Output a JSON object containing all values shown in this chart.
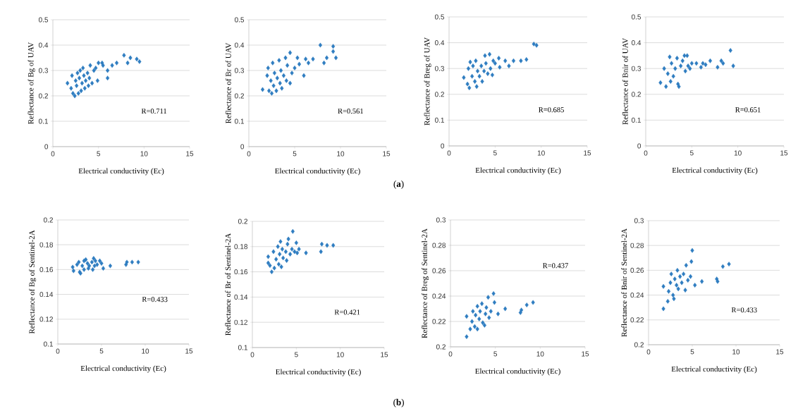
{
  "chart_data": [
    {
      "type": "scatter",
      "xlabel": "Electrical conductivity (Ec)",
      "ylabel": "Reflectance of Bg of UAV",
      "color": "#2f7dc1",
      "marker": "diamond",
      "grid": "y",
      "xlim": [
        0,
        15
      ],
      "xticks": [
        0,
        5,
        10,
        15
      ],
      "ylim": [
        0,
        0.5
      ],
      "yticks": [
        0,
        0.1,
        0.2,
        0.3,
        0.4,
        0.5
      ],
      "annotations": [
        "R=0.711"
      ],
      "x": [
        1.6,
        2.0,
        2.1,
        2.2,
        2.4,
        2.5,
        2.6,
        2.7,
        2.8,
        2.9,
        3.0,
        3.1,
        3.2,
        3.3,
        3.4,
        3.5,
        3.6,
        3.8,
        3.9,
        4.0,
        4.1,
        4.3,
        4.5,
        4.7,
        4.9,
        5.0,
        5.4,
        5.5,
        6.0,
        6.0,
        6.5,
        7.0,
        7.8,
        8.2,
        8.5,
        9.2,
        9.5
      ],
      "values": [
        0.25,
        0.23,
        0.28,
        0.21,
        0.2,
        0.26,
        0.24,
        0.29,
        0.21,
        0.27,
        0.3,
        0.22,
        0.25,
        0.31,
        0.28,
        0.23,
        0.26,
        0.29,
        0.24,
        0.27,
        0.32,
        0.25,
        0.3,
        0.31,
        0.26,
        0.33,
        0.33,
        0.32,
        0.3,
        0.27,
        0.32,
        0.33,
        0.36,
        0.33,
        0.35,
        0.345,
        0.335
      ]
    },
    {
      "type": "scatter",
      "xlabel": "Electrical conductivity (Ec)",
      "ylabel": "Reflectance of Br of UAV",
      "color": "#2f7dc1",
      "marker": "diamond",
      "grid": "y",
      "xlim": [
        0,
        15
      ],
      "xticks": [
        0,
        5,
        10,
        15
      ],
      "ylim": [
        0,
        0.5
      ],
      "yticks": [
        0,
        0.1,
        0.2,
        0.3,
        0.4,
        0.5
      ],
      "annotations": [
        "R=0.561",
        "(**a**)"
      ],
      "x": [
        1.5,
        2.0,
        2.1,
        2.2,
        2.4,
        2.5,
        2.6,
        2.7,
        2.8,
        3.0,
        3.1,
        3.3,
        3.4,
        3.5,
        3.6,
        3.8,
        4.0,
        4.1,
        4.2,
        4.5,
        4.5,
        4.7,
        5.0,
        5.3,
        5.5,
        6.0,
        6.2,
        6.5,
        7.0,
        7.8,
        8.2,
        8.5,
        9.2,
        9.2,
        9.5
      ],
      "values": [
        0.225,
        0.28,
        0.31,
        0.22,
        0.26,
        0.21,
        0.33,
        0.24,
        0.29,
        0.22,
        0.27,
        0.34,
        0.25,
        0.3,
        0.23,
        0.28,
        0.35,
        0.26,
        0.32,
        0.37,
        0.25,
        0.29,
        0.31,
        0.35,
        0.325,
        0.28,
        0.345,
        0.33,
        0.345,
        0.4,
        0.33,
        0.35,
        0.395,
        0.375,
        0.35
      ]
    },
    {
      "type": "scatter",
      "xlabel": "Electrical conductivity (Ec)",
      "ylabel": "Reflectance of Breg of UAV",
      "color": "#2f7dc1",
      "marker": "diamond",
      "grid": "y",
      "xlim": [
        0,
        15
      ],
      "xticks": [
        0,
        5,
        10,
        15
      ],
      "ylim": [
        0,
        0.5
      ],
      "yticks": [
        0,
        0.1,
        0.2,
        0.3,
        0.4,
        0.5
      ],
      "annotations": [
        "R=0.685"
      ],
      "x": [
        1.6,
        2.0,
        2.1,
        2.2,
        2.3,
        2.5,
        2.6,
        2.8,
        2.9,
        3.0,
        3.1,
        3.3,
        3.5,
        3.6,
        3.8,
        3.9,
        4.0,
        4.2,
        4.4,
        4.5,
        4.7,
        4.8,
        5.0,
        5.4,
        5.5,
        6.1,
        6.5,
        7.0,
        7.8,
        8.4,
        9.2,
        9.5
      ],
      "values": [
        0.265,
        0.24,
        0.3,
        0.225,
        0.325,
        0.27,
        0.31,
        0.25,
        0.33,
        0.23,
        0.29,
        0.27,
        0.31,
        0.25,
        0.29,
        0.35,
        0.32,
        0.28,
        0.355,
        0.3,
        0.275,
        0.33,
        0.32,
        0.34,
        0.305,
        0.33,
        0.31,
        0.33,
        0.33,
        0.335,
        0.395,
        0.39
      ]
    },
    {
      "type": "scatter",
      "xlabel": "Electrical conductivity (Ec)",
      "ylabel": "Reflectance of Bnir of UAV",
      "color": "#2f7dc1",
      "marker": "diamond",
      "grid": "y",
      "xlim": [
        0,
        15
      ],
      "xticks": [
        0,
        5,
        10,
        15
      ],
      "ylim": [
        0,
        0.5
      ],
      "yticks": [
        0,
        0.1,
        0.2,
        0.3,
        0.4,
        0.5
      ],
      "annotations": [
        "R=0.651"
      ],
      "x": [
        1.6,
        2.0,
        2.2,
        2.4,
        2.6,
        2.7,
        2.8,
        3.0,
        3.2,
        3.4,
        3.5,
        3.6,
        3.8,
        4.0,
        4.2,
        4.3,
        4.5,
        4.6,
        4.8,
        5.0,
        5.5,
        6.0,
        6.2,
        6.5,
        7.0,
        7.8,
        8.2,
        8.4,
        9.2,
        9.5
      ],
      "values": [
        0.245,
        0.3,
        0.23,
        0.28,
        0.345,
        0.25,
        0.32,
        0.27,
        0.3,
        0.34,
        0.24,
        0.23,
        0.31,
        0.33,
        0.35,
        0.29,
        0.35,
        0.31,
        0.3,
        0.32,
        0.32,
        0.305,
        0.32,
        0.315,
        0.33,
        0.305,
        0.33,
        0.32,
        0.37,
        0.31
      ]
    },
    {
      "type": "scatter",
      "xlabel": "Electrical conductivity (Ec)",
      "ylabel": "Reflectance of Bg of Sentinel-2A",
      "color": "#2f7dc1",
      "marker": "diamond",
      "grid": "y",
      "xlim": [
        0,
        15
      ],
      "xticks": [
        0,
        5,
        10,
        15
      ],
      "ylim": [
        0.1,
        0.2
      ],
      "yticks": [
        0.1,
        0.12,
        0.14,
        0.16,
        0.18,
        0.2
      ],
      "annotations": [
        "R=0.433"
      ],
      "x": [
        1.7,
        1.8,
        2.2,
        2.4,
        2.5,
        2.6,
        2.8,
        3.0,
        3.0,
        3.2,
        3.4,
        3.5,
        3.6,
        3.9,
        4.0,
        4.1,
        4.2,
        4.3,
        4.5,
        4.8,
        5.0,
        5.2,
        6.0,
        7.8,
        7.9,
        8.5,
        9.2
      ],
      "values": [
        0.162,
        0.159,
        0.164,
        0.166,
        0.158,
        0.157,
        0.163,
        0.167,
        0.16,
        0.168,
        0.165,
        0.161,
        0.163,
        0.166,
        0.16,
        0.169,
        0.163,
        0.167,
        0.164,
        0.167,
        0.165,
        0.161,
        0.163,
        0.164,
        0.166,
        0.166,
        0.166
      ]
    },
    {
      "type": "scatter",
      "xlabel": "Electrical conductivity (Ec)",
      "ylabel": "Reflectance of Br of Sentinel-2A",
      "color": "#2f7dc1",
      "marker": "diamond",
      "grid": "y",
      "xlim": [
        0,
        15
      ],
      "xticks": [
        0,
        5,
        10,
        15
      ],
      "ylim": [
        0.1,
        0.2
      ],
      "yticks": [
        0.1,
        0.12,
        0.14,
        0.16,
        0.18,
        0.2
      ],
      "annotations": [
        "R=0.421",
        "(**b**)"
      ],
      "x": [
        1.8,
        1.8,
        2.0,
        2.2,
        2.4,
        2.5,
        2.7,
        2.9,
        3.0,
        3.1,
        3.2,
        3.3,
        3.4,
        3.5,
        3.8,
        3.9,
        4.0,
        4.1,
        4.3,
        4.5,
        4.6,
        4.8,
        5.0,
        5.1,
        5.3,
        6.1,
        7.8,
        7.9,
        8.5,
        9.2
      ],
      "values": [
        0.172,
        0.167,
        0.165,
        0.16,
        0.176,
        0.163,
        0.17,
        0.18,
        0.166,
        0.174,
        0.184,
        0.164,
        0.178,
        0.171,
        0.176,
        0.169,
        0.182,
        0.186,
        0.174,
        0.178,
        0.192,
        0.176,
        0.183,
        0.175,
        0.178,
        0.175,
        0.176,
        0.182,
        0.181,
        0.181
      ]
    },
    {
      "type": "scatter",
      "xlabel": "Electrical conductivity (Ec)",
      "ylabel": "Reflectance of Breg of Sentinel-2A",
      "color": "#2f7dc1",
      "marker": "diamond",
      "grid": "y",
      "xlim": [
        0,
        15
      ],
      "xticks": [
        0,
        5,
        10,
        15
      ],
      "ylim": [
        0.2,
        0.3
      ],
      "yticks": [
        0.2,
        0.22,
        0.24,
        0.26,
        0.28,
        0.3
      ],
      "annotations": [
        "R=0.437"
      ],
      "x": [
        1.8,
        1.8,
        2.2,
        2.4,
        2.5,
        2.7,
        2.8,
        3.0,
        3.0,
        3.2,
        3.3,
        3.5,
        3.6,
        3.8,
        3.9,
        4.0,
        4.2,
        4.3,
        4.5,
        4.8,
        4.9,
        5.3,
        6.1,
        7.8,
        7.9,
        8.5,
        9.2
      ],
      "values": [
        0.208,
        0.224,
        0.214,
        0.22,
        0.228,
        0.216,
        0.225,
        0.214,
        0.232,
        0.222,
        0.228,
        0.234,
        0.219,
        0.217,
        0.226,
        0.231,
        0.239,
        0.223,
        0.228,
        0.242,
        0.235,
        0.226,
        0.23,
        0.227,
        0.229,
        0.233,
        0.235
      ]
    },
    {
      "type": "scatter",
      "xlabel": "Electrical conductivity (Ec)",
      "ylabel": "Reflectance of Bnir of Sentinel-2A",
      "color": "#2f7dc1",
      "marker": "diamond",
      "grid": "y",
      "xlim": [
        0,
        15
      ],
      "xticks": [
        0,
        5,
        10,
        15
      ],
      "ylim": [
        0.2,
        0.3
      ],
      "yticks": [
        0.2,
        0.22,
        0.24,
        0.26,
        0.28,
        0.3
      ],
      "annotations": [
        "R=0.433"
      ],
      "x": [
        1.7,
        1.7,
        2.2,
        2.3,
        2.5,
        2.6,
        2.8,
        2.9,
        3.0,
        3.2,
        3.3,
        3.4,
        3.6,
        3.8,
        4.0,
        4.2,
        4.3,
        4.5,
        4.8,
        4.9,
        5.0,
        5.3,
        6.1,
        7.8,
        7.9,
        8.5,
        9.2
      ],
      "values": [
        0.229,
        0.247,
        0.235,
        0.243,
        0.25,
        0.257,
        0.24,
        0.237,
        0.253,
        0.248,
        0.26,
        0.245,
        0.255,
        0.25,
        0.257,
        0.244,
        0.264,
        0.252,
        0.255,
        0.267,
        0.276,
        0.248,
        0.251,
        0.253,
        0.251,
        0.263,
        0.265
      ]
    }
  ]
}
